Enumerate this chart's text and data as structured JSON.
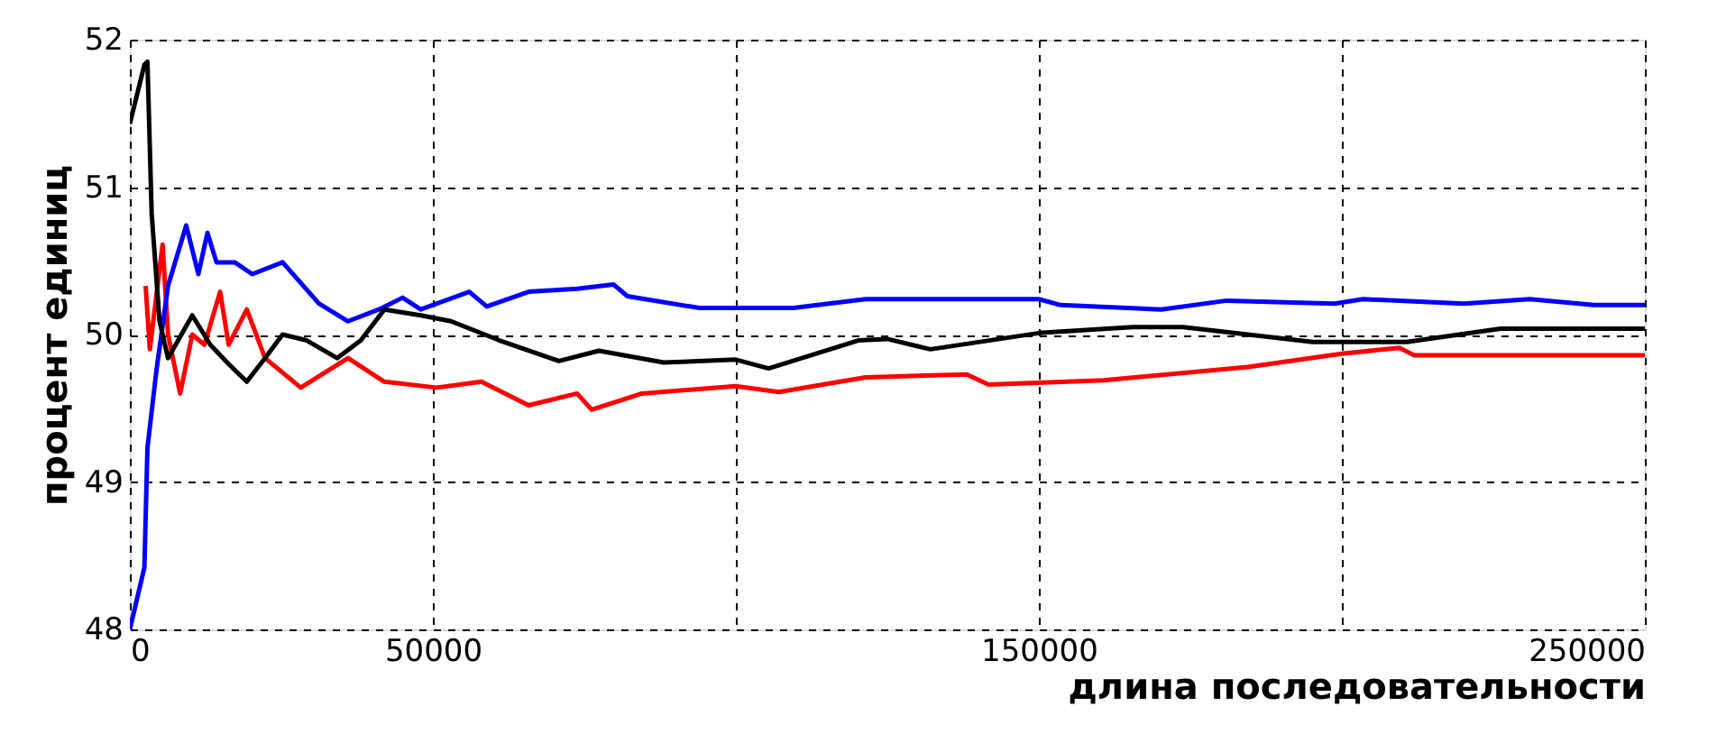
{
  "chart_data": {
    "type": "line",
    "xlabel": "длина последовательности",
    "ylabel": "процент единиц",
    "xlim": [
      0,
      250000
    ],
    "ylim": [
      48,
      52
    ],
    "xticks": [
      0,
      50000,
      {
        "value": 100000,
        "label": null
      },
      150000,
      {
        "value": 200000,
        "label": null
      },
      250000
    ],
    "yticks": [
      48,
      49,
      50,
      51,
      52
    ],
    "grid": true,
    "legend": false,
    "line_style": "solid",
    "marker": "none",
    "series": [
      {
        "color": "#ff0000",
        "x": [
          2600,
          3300,
          5400,
          6300,
          8300,
          10300,
          12300,
          14900,
          16300,
          19300,
          22300,
          28200,
          36000,
          42000,
          50600,
          58000,
          65800,
          73800,
          76200,
          84500,
          100000,
          107100,
          121400,
          138100,
          141700,
          160700,
          184500,
          200000,
          209500,
          211900,
          250000
        ],
        "values": [
          50.33,
          49.9,
          50.61,
          50.0,
          49.6,
          50.0,
          49.93,
          50.29,
          49.93,
          50.17,
          49.84,
          49.64,
          49.84,
          49.68,
          49.64,
          49.68,
          49.52,
          49.6,
          49.49,
          49.6,
          49.65,
          49.61,
          49.71,
          49.73,
          49.66,
          49.69,
          49.78,
          49.87,
          49.91,
          49.86,
          49.86
        ]
      },
      {
        "color": "#0000ff",
        "x": [
          0,
          2400,
          2900,
          4400,
          6300,
          9300,
          11300,
          12800,
          14300,
          17300,
          20200,
          25200,
          31200,
          36000,
          41100,
          45000,
          48000,
          56000,
          58900,
          65800,
          73800,
          79800,
          82100,
          94000,
          109500,
          121400,
          139300,
          150000,
          153600,
          170200,
          181000,
          198800,
          203500,
          220200,
          231000,
          241600,
          250000
        ],
        "values": [
          48.0,
          48.42,
          49.23,
          49.76,
          50.33,
          50.74,
          50.41,
          50.69,
          50.49,
          50.49,
          50.41,
          50.49,
          50.21,
          50.09,
          50.17,
          50.25,
          50.17,
          50.29,
          50.19,
          50.29,
          50.31,
          50.34,
          50.26,
          50.18,
          50.18,
          50.24,
          50.24,
          50.24,
          50.2,
          50.17,
          50.23,
          50.21,
          50.24,
          50.21,
          50.24,
          50.2,
          50.2
        ]
      },
      {
        "color": "#000000",
        "x": [
          0,
          2400,
          2900,
          3600,
          4900,
          6300,
          10300,
          13300,
          16300,
          19300,
          22300,
          25200,
          29200,
          34200,
          38100,
          42000,
          48000,
          53000,
          61000,
          70800,
          77400,
          88100,
          100000,
          105400,
          120200,
          125000,
          132100,
          150000,
          165500,
          173800,
          195200,
          210700,
          226200,
          250000
        ],
        "values": [
          51.43,
          51.83,
          51.85,
          50.82,
          50.09,
          49.84,
          50.13,
          49.93,
          49.8,
          49.68,
          49.84,
          50.0,
          49.96,
          49.84,
          49.96,
          50.17,
          50.13,
          50.09,
          49.96,
          49.82,
          49.89,
          49.81,
          49.83,
          49.77,
          49.96,
          49.97,
          49.9,
          50.01,
          50.05,
          50.05,
          49.95,
          49.95,
          50.04,
          50.04
        ]
      }
    ]
  }
}
